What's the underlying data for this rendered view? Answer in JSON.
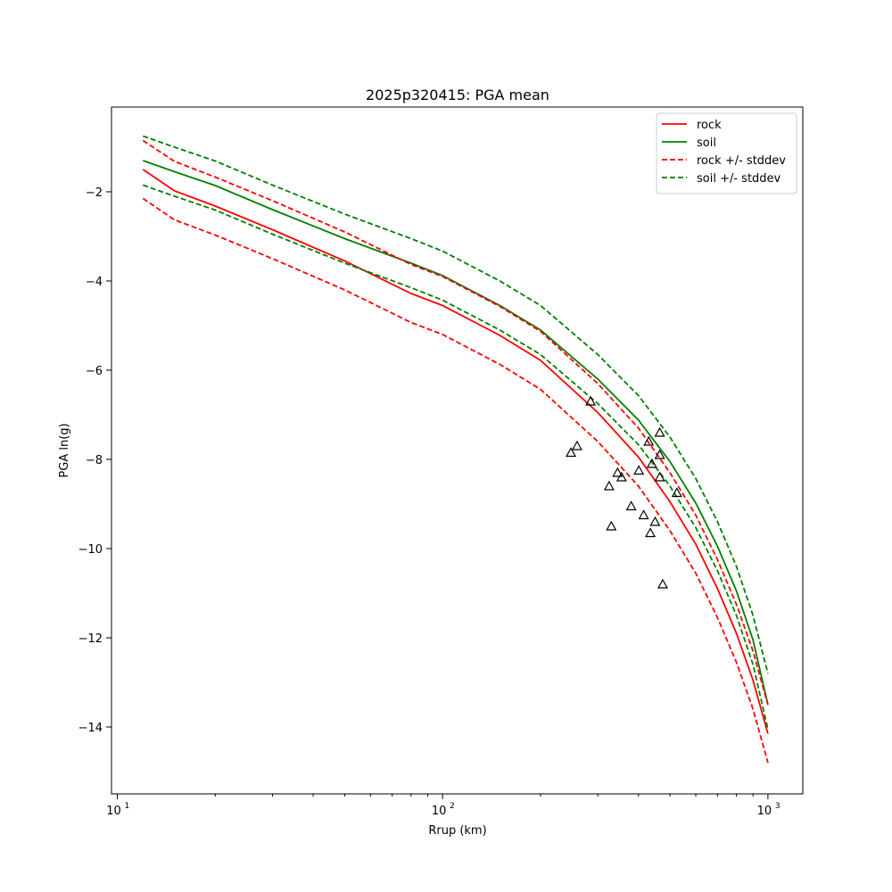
{
  "chart_data": {
    "type": "line",
    "title": "2025p320415: PGA mean",
    "xlabel": "Rrup (km)",
    "ylabel": "PGA ln(g)",
    "xscale": "log",
    "xlim": [
      9.6,
      1280
    ],
    "ylim": [
      -15.5,
      -0.1
    ],
    "x_ticks": [
      10,
      100,
      1000
    ],
    "x_tick_labels": [
      "10",
      "1",
      "10",
      "2",
      "10",
      "3"
    ],
    "y_ticks": [
      -2,
      -4,
      -6,
      -8,
      -10,
      -12,
      -14
    ],
    "y_tick_labels": [
      "−2",
      "−4",
      "−6",
      "−8",
      "−10",
      "−12",
      "−14"
    ],
    "grid": false,
    "legend_position": "top-right",
    "x": [
      12,
      15,
      20,
      30,
      50,
      80,
      100,
      150,
      200,
      300,
      400,
      500,
      600,
      700,
      800,
      900,
      1000
    ],
    "series": [
      {
        "name": "rock",
        "style": "solid",
        "color": "#ff0000",
        "values": [
          -1.5,
          -1.98,
          -2.32,
          -2.85,
          -3.55,
          -4.28,
          -4.55,
          -5.22,
          -5.78,
          -6.95,
          -7.95,
          -8.95,
          -9.9,
          -10.9,
          -11.9,
          -12.95,
          -14.15
        ]
      },
      {
        "name": "soil",
        "style": "solid",
        "color": "#008000",
        "values": [
          -1.3,
          -1.55,
          -1.86,
          -2.4,
          -3.05,
          -3.6,
          -3.88,
          -4.55,
          -5.1,
          -6.2,
          -7.12,
          -8.05,
          -8.98,
          -9.95,
          -10.95,
          -12.05,
          -13.5
        ]
      },
      {
        "name": "rock +/- stddev",
        "style": "dashed",
        "color": "#ff0000",
        "values": [
          -0.85,
          -1.32,
          -1.67,
          -2.2,
          -2.9,
          -3.63,
          -3.9,
          -4.57,
          -5.13,
          -6.3,
          -7.3,
          -8.3,
          -9.25,
          -10.25,
          -11.25,
          -12.3,
          -13.5
        ]
      },
      {
        "name": "",
        "style": "dashed",
        "color": "#ff0000",
        "values": [
          -2.15,
          -2.63,
          -2.97,
          -3.5,
          -4.2,
          -4.93,
          -5.2,
          -5.87,
          -6.43,
          -7.6,
          -8.6,
          -9.6,
          -10.55,
          -11.55,
          -12.55,
          -13.6,
          -14.8
        ]
      },
      {
        "name": "soil +/- stddev",
        "style": "dashed",
        "color": "#008000",
        "values": [
          -0.75,
          -1.0,
          -1.31,
          -1.85,
          -2.5,
          -3.05,
          -3.33,
          -4.0,
          -4.55,
          -5.65,
          -6.57,
          -7.5,
          -8.43,
          -9.4,
          -10.4,
          -11.5,
          -12.8
        ]
      },
      {
        "name": "",
        "style": "dashed",
        "color": "#008000",
        "values": [
          -1.85,
          -2.1,
          -2.41,
          -2.95,
          -3.6,
          -4.15,
          -4.43,
          -5.1,
          -5.65,
          -6.75,
          -7.67,
          -8.6,
          -9.53,
          -10.5,
          -11.5,
          -12.6,
          -14.05
        ]
      }
    ],
    "observations": {
      "marker": "triangle",
      "points": [
        {
          "x": 285,
          "y": -6.7
        },
        {
          "x": 259,
          "y": -7.7
        },
        {
          "x": 248,
          "y": -7.85
        },
        {
          "x": 430,
          "y": -7.6
        },
        {
          "x": 465,
          "y": -7.4
        },
        {
          "x": 465,
          "y": -7.9
        },
        {
          "x": 440,
          "y": -8.1
        },
        {
          "x": 401,
          "y": -8.25
        },
        {
          "x": 465,
          "y": -8.4
        },
        {
          "x": 345,
          "y": -8.3
        },
        {
          "x": 355,
          "y": -8.4
        },
        {
          "x": 325,
          "y": -8.6
        },
        {
          "x": 525,
          "y": -8.75
        },
        {
          "x": 380,
          "y": -9.05
        },
        {
          "x": 415,
          "y": -9.25
        },
        {
          "x": 450,
          "y": -9.4
        },
        {
          "x": 330,
          "y": -9.5
        },
        {
          "x": 435,
          "y": -9.65
        },
        {
          "x": 475,
          "y": -10.8
        }
      ]
    }
  }
}
